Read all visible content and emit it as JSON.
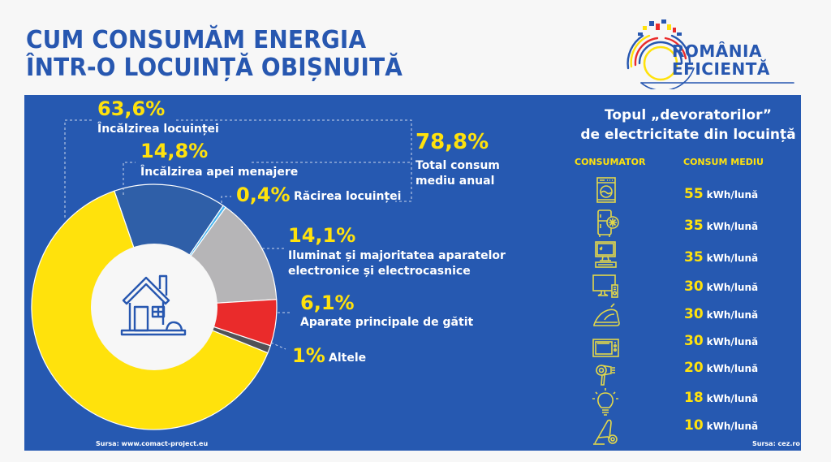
{
  "header": {
    "title_line1": "CUM CONSUMĂM ENERGIA",
    "title_line2": "ÎNTR-O LOCUINȚĂ OBIȘNUITĂ",
    "logo_line1": "ROMÂNIA",
    "logo_line2": "EFICIENTĂ"
  },
  "colors": {
    "brand_blue": "#2659b1",
    "yellow": "#ffe20c",
    "background": "#f7f7f7"
  },
  "chart_data": {
    "type": "pie",
    "title": "Cum consumăm energia într-o locuință obișnuită",
    "slices": [
      {
        "label": "Încălzirea locuinței",
        "value": 63.6,
        "value_label": "63,6%",
        "color": "#ffe20c"
      },
      {
        "label": "Încălzirea apei menajere",
        "value": 14.8,
        "value_label": "14,8%",
        "color": "#2f5fa8"
      },
      {
        "label": "Răcirea locuinței",
        "value": 0.4,
        "value_label": "0,4%",
        "color": "#49b6f0"
      },
      {
        "label": "Iluminat și majoritatea aparatelor electronice și electrocasnice",
        "value": 14.1,
        "value_label": "14,1%",
        "color": "#b6b5b7"
      },
      {
        "label": "Aparate principale de gătit",
        "value": 6.1,
        "value_label": "6,1%",
        "color": "#ea2b2b"
      },
      {
        "label": "Altele",
        "value": 1,
        "value_label": "1%",
        "color": "#505257"
      }
    ],
    "total": {
      "value_label": "78,8%",
      "label_line1": "Total consum",
      "label_line2": "mediu anual"
    },
    "label_lines": {
      "iluminat_line1": "Iluminat și majoritatea aparatelor",
      "iluminat_line2": "electronice și electrocasnice"
    },
    "center_icon": "house-icon",
    "source": "Sursa: www.comact-project.eu"
  },
  "devourers": {
    "title_line1": "Topul „devoratorilor”",
    "title_line2": "de electricitate din locuință",
    "col_consumer": "CONSUMATOR",
    "col_consumption": "CONSUM MEDIU",
    "unit": "kWh/lună",
    "rows": [
      {
        "icon": "washing-machine-icon",
        "value": "55"
      },
      {
        "icon": "refrigerator-icon",
        "value": "35"
      },
      {
        "icon": "desktop-computer-icon",
        "value": "35"
      },
      {
        "icon": "tv-icon",
        "value": "30"
      },
      {
        "icon": "iron-icon",
        "value": "30"
      },
      {
        "icon": "microwave-icon",
        "value": "30"
      },
      {
        "icon": "hair-dryer-icon",
        "value": "20"
      },
      {
        "icon": "light-bulb-icon",
        "value": "18"
      },
      {
        "icon": "vacuum-cleaner-icon",
        "value": "10"
      }
    ],
    "source": "Sursa: cez.ro"
  }
}
